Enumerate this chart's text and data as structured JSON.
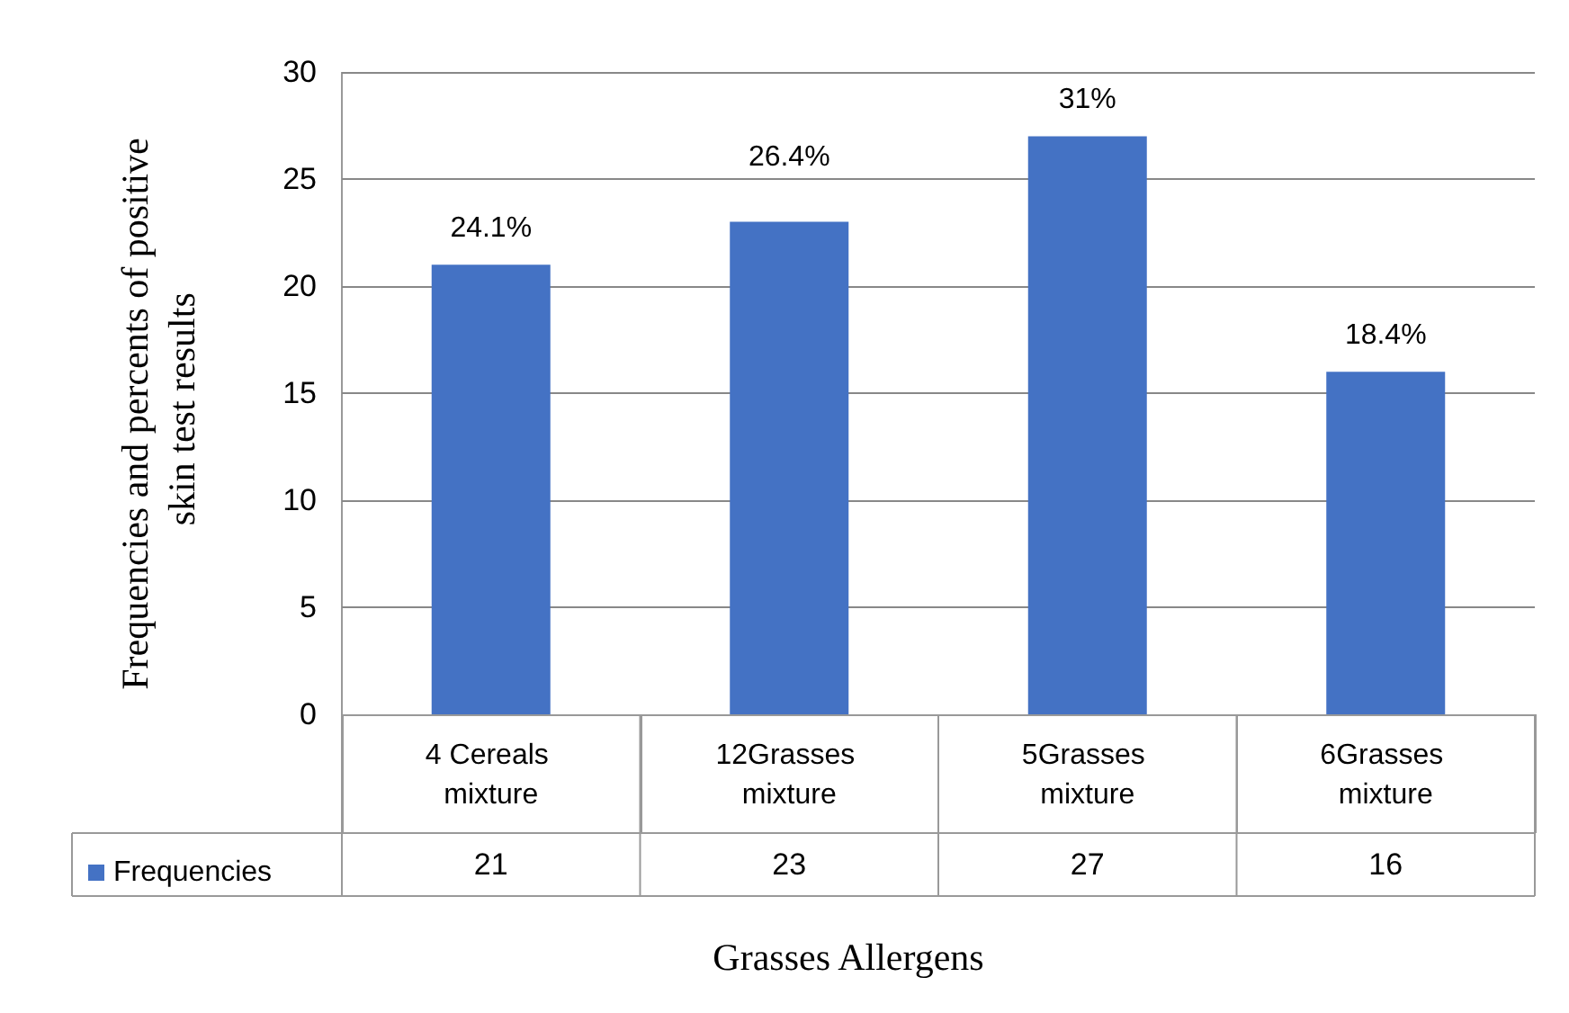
{
  "chart_data": {
    "type": "bar",
    "xlabel": "Grasses Allergens",
    "ylabel": "Frequencies and percents of positive skin test results",
    "categories": [
      "4 Cereals mixture",
      "12Grasses mixture",
      "5Grasses mixture",
      "6Grasses mixture"
    ],
    "series": [
      {
        "name": "Frequencies",
        "color": "#4472c4",
        "values": [
          21,
          23,
          27,
          16
        ],
        "value_labels": [
          "21",
          "23",
          "27",
          "16"
        ]
      }
    ],
    "annotations": [
      {
        "text": "24.1%",
        "x": "4 Cereals mixture",
        "y": 21
      },
      {
        "text": "26.4%",
        "x": "12Grasses mixture",
        "y": 23
      },
      {
        "text": "31%",
        "x": "5Grasses mixture",
        "y": 27
      },
      {
        "text": "18.4%",
        "x": "6Grasses mixture",
        "y": 16
      }
    ],
    "ylim": [
      0,
      30
    ],
    "yticks": [
      0,
      5,
      10,
      15,
      20,
      25,
      30
    ],
    "grid": "y",
    "legend": "bottom"
  }
}
